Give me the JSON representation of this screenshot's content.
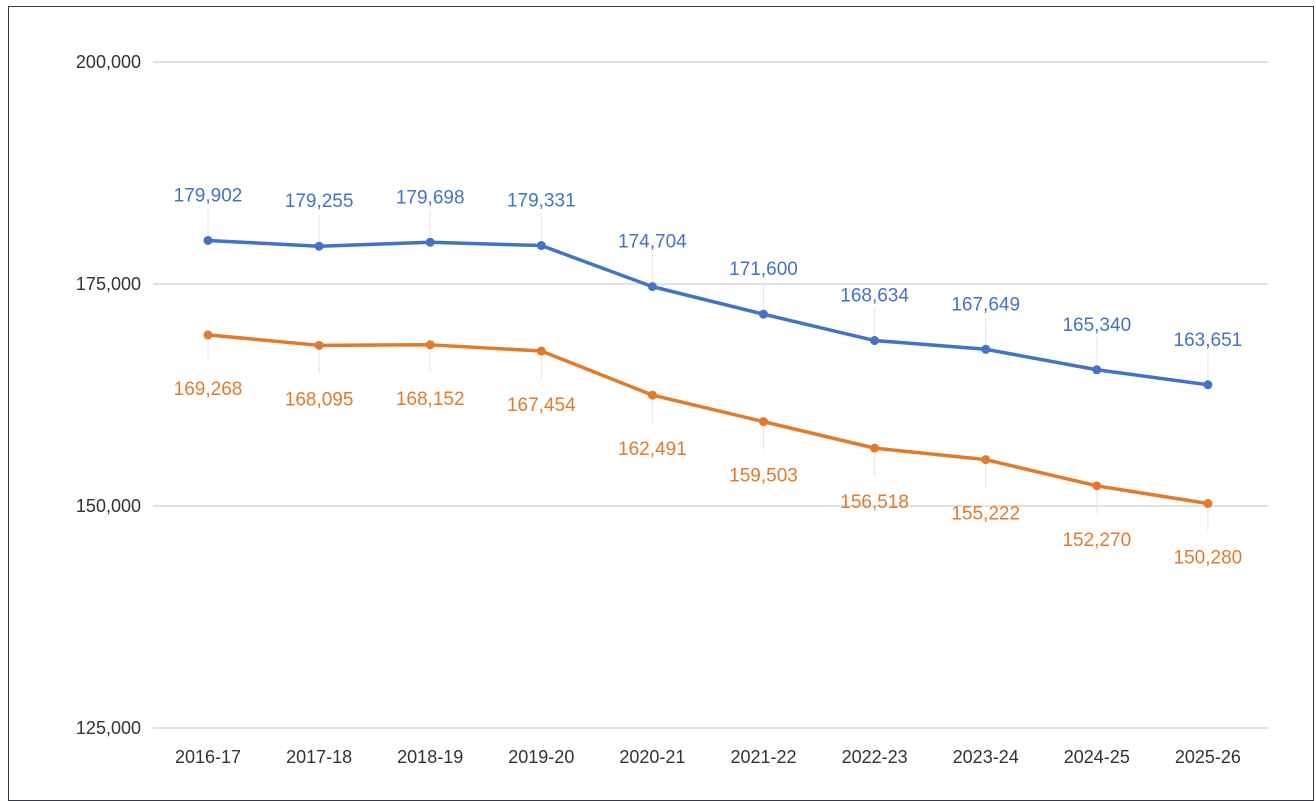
{
  "chart_data": {
    "type": "line",
    "title": "",
    "xlabel": "",
    "ylabel": "",
    "categories": [
      "2016-17",
      "2017-18",
      "2018-19",
      "2019-20",
      "2020-21",
      "2021-22",
      "2022-23",
      "2023-24",
      "2024-25",
      "2025-26"
    ],
    "ylim": [
      125000,
      200000
    ],
    "yticks": [
      125000,
      150000,
      175000,
      200000
    ],
    "ytick_labels": [
      "125,000",
      "150,000",
      "175,000",
      "200,000"
    ],
    "grid": true,
    "legend": "none",
    "series": [
      {
        "color": "#4472C4",
        "label_position": "above",
        "values": [
          179902,
          179255,
          179698,
          179331,
          174704,
          171600,
          168634,
          167649,
          165340,
          163651
        ],
        "labels": [
          "179,902",
          "179,255",
          "179,698",
          "179,331",
          "174,704",
          "171,600",
          "168,634",
          "167,649",
          "165,340",
          "163,651"
        ]
      },
      {
        "color": "#E07B2E",
        "label_position": "below",
        "values": [
          169268,
          168095,
          168152,
          167454,
          162491,
          159503,
          156518,
          155222,
          152270,
          150280
        ],
        "labels": [
          "169,268",
          "168,095",
          "168,152",
          "167,454",
          "162,491",
          "159,503",
          "156,518",
          "155,222",
          "152,270",
          "150,280"
        ]
      }
    ]
  }
}
